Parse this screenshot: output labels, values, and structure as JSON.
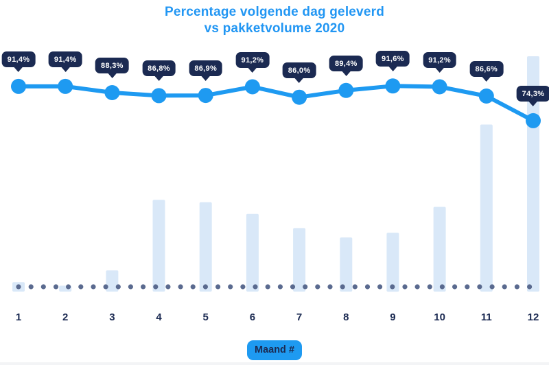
{
  "title": {
    "line1": "Percentage volgende dag geleverd",
    "line2": "vs pakketvolume 2020"
  },
  "x_axis": {
    "ticks": [
      "1",
      "2",
      "3",
      "4",
      "5",
      "6",
      "7",
      "8",
      "9",
      "10",
      "11",
      "12"
    ],
    "label_badge": "Maand #"
  },
  "colors": {
    "title_blue": "#2196F3",
    "accent_blue": "#1E9AF1",
    "navy": "#1B2A52",
    "badge_text": "#FFFFFF",
    "bar_fill": "#D9E8F8",
    "baseline_dot": "#5A6A8F",
    "background": "#FFFFFF"
  },
  "chart_data": {
    "type": "line",
    "subtype": "combo: line with value badges + background volume bars + dotted baseline",
    "title": "Percentage volgende dag geleverd vs pakketvolume 2020",
    "categories": [
      1,
      2,
      3,
      4,
      5,
      6,
      7,
      8,
      9,
      10,
      11,
      12
    ],
    "xlabel": "Maand #",
    "ylabel": "",
    "grid": false,
    "legend": "none",
    "series": [
      {
        "name": "Percentage volgende dag geleverd",
        "type": "line",
        "unit": "%",
        "values": [
          91.4,
          91.4,
          88.3,
          86.8,
          86.9,
          91.2,
          86.0,
          89.4,
          91.6,
          91.2,
          86.6,
          74.3
        ],
        "labels": [
          "91,4%",
          "91,4%",
          "88,3%",
          "86,8%",
          "86,9%",
          "91,2%",
          "86,0%",
          "89,4%",
          "91,6%",
          "91,2%",
          "86,6%",
          "74,3%"
        ]
      },
      {
        "name": "Pakketvolume 2020",
        "type": "bar",
        "unit": "relative volume, est. % of max (no value axis shown)",
        "values": [
          4,
          2.5,
          9,
          39,
          38,
          33,
          27,
          23,
          25,
          36,
          71,
          100
        ]
      }
    ],
    "baseline": "dotted"
  }
}
